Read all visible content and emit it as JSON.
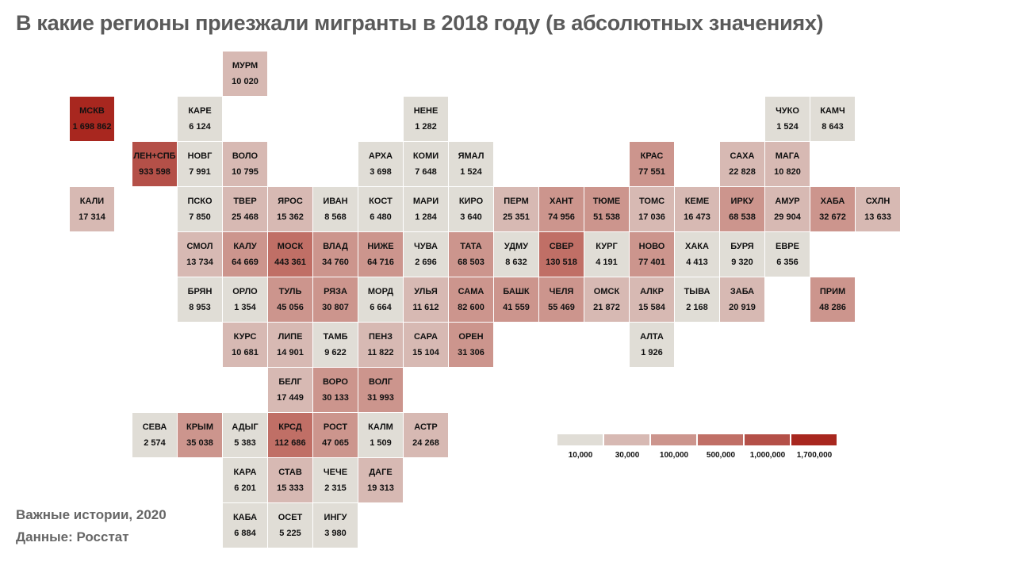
{
  "title": "В какие регионы приезжали мигранты в 2018 году (в абсолютных значениях)",
  "footer": {
    "credit": "Важные истории, 2020",
    "source": "Данные: Росстат"
  },
  "colors": {
    "text": "#111111",
    "title": "#5a5a5a"
  },
  "chart_data": {
    "type": "tile-map",
    "title": "В какие регионы приезжали мигранты в 2018 году (в абсолютных значениях)",
    "legend": {
      "labels": [
        "10,000",
        "30,000",
        "100,000",
        "500,000",
        "1,000,000",
        "1,700,000"
      ],
      "thresholds": [
        10000,
        30000,
        100000,
        500000,
        1000000,
        1700000
      ],
      "colors": [
        "#e0ddd6",
        "#d7b9b3",
        "#cc958d",
        "#c06f66",
        "#b45048",
        "#a8271f"
      ]
    },
    "regions": [
      {
        "code": "МУРМ",
        "value": 10020,
        "display": "10 020"
      },
      {
        "code": "МСКВ",
        "value": 1698862,
        "display": "1 698 862"
      },
      {
        "code": "КАРЕ",
        "value": 6124,
        "display": "6 124"
      },
      {
        "code": "НЕНЕ",
        "value": 1282,
        "display": "1 282"
      },
      {
        "code": "ЧУКО",
        "value": 1524,
        "display": "1 524"
      },
      {
        "code": "КАМЧ",
        "value": 8643,
        "display": "8 643"
      },
      {
        "code": "ЛЕН+СПБ",
        "value": 933598,
        "display": "933 598"
      },
      {
        "code": "НОВГ",
        "value": 7991,
        "display": "7 991"
      },
      {
        "code": "ВОЛО",
        "value": 10795,
        "display": "10 795"
      },
      {
        "code": "АРХА",
        "value": 3698,
        "display": "3 698"
      },
      {
        "code": "КОМИ",
        "value": 7648,
        "display": "7 648"
      },
      {
        "code": "ЯМАЛ",
        "value": 1524,
        "display": "1 524"
      },
      {
        "code": "КРАС",
        "value": 77551,
        "display": "77 551"
      },
      {
        "code": "САХА",
        "value": 22828,
        "display": "22 828"
      },
      {
        "code": "МАГА",
        "value": 10820,
        "display": "10 820"
      },
      {
        "code": "КАЛИ",
        "value": 17314,
        "display": "17 314"
      },
      {
        "code": "ПСКО",
        "value": 7850,
        "display": "7 850"
      },
      {
        "code": "ТВЕР",
        "value": 25468,
        "display": "25 468"
      },
      {
        "code": "ЯРОС",
        "value": 15362,
        "display": "15 362"
      },
      {
        "code": "ИВАН",
        "value": 8568,
        "display": "8 568"
      },
      {
        "code": "КОСТ",
        "value": 6480,
        "display": "6 480"
      },
      {
        "code": "МАРИ",
        "value": 1284,
        "display": "1 284"
      },
      {
        "code": "КИРО",
        "value": 3640,
        "display": "3 640"
      },
      {
        "code": "ПЕРМ",
        "value": 25351,
        "display": "25 351"
      },
      {
        "code": "ХАНТ",
        "value": 74956,
        "display": "74 956"
      },
      {
        "code": "ТЮМЕ",
        "value": 51538,
        "display": "51 538"
      },
      {
        "code": "ТОМС",
        "value": 17036,
        "display": "17 036"
      },
      {
        "code": "КЕМЕ",
        "value": 16473,
        "display": "16 473"
      },
      {
        "code": "ИРКУ",
        "value": 68538,
        "display": "68 538"
      },
      {
        "code": "АМУР",
        "value": 29904,
        "display": "29 904"
      },
      {
        "code": "ХАБА",
        "value": 32672,
        "display": "32 672"
      },
      {
        "code": "СХЛН",
        "value": 13633,
        "display": "13 633"
      },
      {
        "code": "СМОЛ",
        "value": 13734,
        "display": "13 734"
      },
      {
        "code": "КАЛУ",
        "value": 64669,
        "display": "64 669"
      },
      {
        "code": "МОСК",
        "value": 443361,
        "display": "443 361"
      },
      {
        "code": "ВЛАД",
        "value": 34760,
        "display": "34 760"
      },
      {
        "code": "НИЖЕ",
        "value": 64716,
        "display": "64 716"
      },
      {
        "code": "ЧУВА",
        "value": 2696,
        "display": "2 696"
      },
      {
        "code": "ТАТА",
        "value": 68503,
        "display": "68 503"
      },
      {
        "code": "УДМУ",
        "value": 8632,
        "display": "8 632"
      },
      {
        "code": "СВЕР",
        "value": 130518,
        "display": "130 518"
      },
      {
        "code": "КУРГ",
        "value": 4191,
        "display": "4 191"
      },
      {
        "code": "НОВО",
        "value": 77401,
        "display": "77 401"
      },
      {
        "code": "ХАКА",
        "value": 4413,
        "display": "4 413"
      },
      {
        "code": "БУРЯ",
        "value": 9320,
        "display": "9 320"
      },
      {
        "code": "ЕВРЕ",
        "value": 6356,
        "display": "6 356"
      },
      {
        "code": "БРЯН",
        "value": 8953,
        "display": "8 953"
      },
      {
        "code": "ОРЛО",
        "value": 1354,
        "display": "1 354"
      },
      {
        "code": "ТУЛЬ",
        "value": 45056,
        "display": "45 056"
      },
      {
        "code": "РЯЗА",
        "value": 30807,
        "display": "30 807"
      },
      {
        "code": "МОРД",
        "value": 6664,
        "display": "6 664"
      },
      {
        "code": "УЛЬЯ",
        "value": 11612,
        "display": "11 612"
      },
      {
        "code": "САМА",
        "value": 82600,
        "display": "82 600"
      },
      {
        "code": "БАШК",
        "value": 41559,
        "display": "41 559"
      },
      {
        "code": "ЧЕЛЯ",
        "value": 55469,
        "display": "55 469"
      },
      {
        "code": "ОМСК",
        "value": 21872,
        "display": "21 872"
      },
      {
        "code": "АЛКР",
        "value": 15584,
        "display": "15 584"
      },
      {
        "code": "ТЫВА",
        "value": 2168,
        "display": "2 168"
      },
      {
        "code": "ЗАБА",
        "value": 20919,
        "display": "20 919"
      },
      {
        "code": "ПРИМ",
        "value": 48286,
        "display": "48 286"
      },
      {
        "code": "КУРС",
        "value": 10681,
        "display": "10 681"
      },
      {
        "code": "ЛИПЕ",
        "value": 14901,
        "display": "14 901"
      },
      {
        "code": "ТАМБ",
        "value": 9622,
        "display": "9 622"
      },
      {
        "code": "ПЕНЗ",
        "value": 11822,
        "display": "11 822"
      },
      {
        "code": "САРА",
        "value": 15104,
        "display": "15 104"
      },
      {
        "code": "ОРЕН",
        "value": 31306,
        "display": "31 306"
      },
      {
        "code": "АЛТА",
        "value": 1926,
        "display": "1 926"
      },
      {
        "code": "БЕЛГ",
        "value": 17449,
        "display": "17 449"
      },
      {
        "code": "ВОРО",
        "value": 30133,
        "display": "30 133"
      },
      {
        "code": "ВОЛГ",
        "value": 31993,
        "display": "31 993"
      },
      {
        "code": "СЕВА",
        "value": 2574,
        "display": "2 574"
      },
      {
        "code": "КРЫМ",
        "value": 35038,
        "display": "35 038"
      },
      {
        "code": "АДЫГ",
        "value": 5383,
        "display": "5 383"
      },
      {
        "code": "КРСД",
        "value": 112686,
        "display": "112 686"
      },
      {
        "code": "РОСТ",
        "value": 47065,
        "display": "47 065"
      },
      {
        "code": "КАЛМ",
        "value": 1509,
        "display": "1 509"
      },
      {
        "code": "АСТР",
        "value": 24268,
        "display": "24 268"
      },
      {
        "code": "КАРА",
        "value": 6201,
        "display": "6 201"
      },
      {
        "code": "СТАВ",
        "value": 15333,
        "display": "15 333"
      },
      {
        "code": "ЧЕЧЕ",
        "value": 2315,
        "display": "2 315"
      },
      {
        "code": "ДАГЕ",
        "value": 19313,
        "display": "19 313"
      },
      {
        "code": "КАБА",
        "value": 6884,
        "display": "6 884"
      },
      {
        "code": "ОСЕТ",
        "value": 5225,
        "display": "5 225"
      },
      {
        "code": "ИНГУ",
        "value": 3980,
        "display": "3 980"
      }
    ]
  }
}
